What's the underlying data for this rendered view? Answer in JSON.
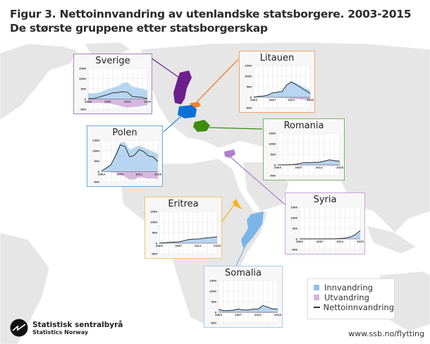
{
  "header": {
    "title_line1": "Figur 3. Nettoinnvandring av utenlandske statsborgere. 2003-2015",
    "title_line2": "De største gruppene etter statsborgerskap"
  },
  "legend": {
    "items": [
      {
        "label": "Innvandring",
        "color": "#8fc1ea",
        "type": "square"
      },
      {
        "label": "Utvandring",
        "color": "#d3b3dd",
        "type": "square"
      },
      {
        "label": "Nettoinnvandring",
        "color": "#333333",
        "type": "line"
      }
    ]
  },
  "footer": {
    "source": "www.ssb.no/flytting",
    "logo_name": "Statistisk sentralbyrå",
    "logo_sub": "Statistics Norway"
  },
  "colors": {
    "innvandring": "#b7d5f0",
    "utvandring": "#d6b8df",
    "netto": "#333333",
    "map_land": "#e4e4e4"
  },
  "chart_data": [
    {
      "type": "area",
      "title": "Sverige",
      "border_color": "#a77fc0",
      "country_color": "#6d1f8c",
      "x": [
        2003,
        2004,
        2005,
        2006,
        2007,
        2008,
        2009,
        2010,
        2011,
        2012,
        2013,
        2014,
        2015
      ],
      "xticks": [
        "2003",
        "2007",
        "2011",
        "2015"
      ],
      "yticks": [
        "1500",
        "1000",
        "500",
        "0",
        "-500"
      ],
      "ylim": [
        -500,
        1500
      ],
      "series": [
        {
          "name": "Innvandring",
          "values": [
            300,
            270,
            300,
            380,
            480,
            560,
            620,
            780,
            820,
            600,
            560,
            500,
            420
          ]
        },
        {
          "name": "Utvandring",
          "values": [
            -200,
            -200,
            -190,
            -200,
            -210,
            -250,
            -300,
            -380,
            -420,
            -400,
            -380,
            -330,
            -310
          ]
        },
        {
          "name": "Nettoinnvandring",
          "values": [
            20,
            20,
            80,
            150,
            220,
            300,
            320,
            360,
            330,
            120,
            100,
            80,
            10
          ]
        }
      ]
    },
    {
      "type": "area",
      "title": "Litauen",
      "border_color": "#f1a46a",
      "country_color": "#f07e2b",
      "x": [
        2003,
        2004,
        2005,
        2006,
        2007,
        2008,
        2009,
        2010,
        2011,
        2012,
        2013,
        2014,
        2015
      ],
      "xticks": [
        "2003",
        "2007",
        "2011",
        "2015"
      ],
      "yticks": [
        "1500",
        "1000",
        "500",
        "0",
        "-500"
      ],
      "ylim": [
        -500,
        1500
      ],
      "series": [
        {
          "name": "Innvandring",
          "values": [
            10,
            40,
            60,
            110,
            220,
            260,
            300,
            620,
            780,
            680,
            560,
            440,
            340
          ]
        },
        {
          "name": "Utvandring",
          "values": [
            0,
            0,
            0,
            0,
            -10,
            -20,
            -30,
            -40,
            -60,
            -80,
            -100,
            -120,
            -140
          ]
        },
        {
          "name": "Nettoinnvandring",
          "values": [
            10,
            40,
            60,
            100,
            210,
            240,
            270,
            580,
            720,
            600,
            460,
            320,
            180
          ]
        }
      ]
    },
    {
      "type": "area",
      "title": "Polen",
      "border_color": "#6aa8e0",
      "country_color": "#0a6fd6",
      "x": [
        2003,
        2004,
        2005,
        2006,
        2007,
        2008,
        2009,
        2010,
        2011,
        2012,
        2013,
        2014,
        2015
      ],
      "xticks": [
        "2003",
        "2007",
        "2011",
        "2015"
      ],
      "yticks": [
        "1500",
        "1000",
        "500",
        "0",
        "-500"
      ],
      "ylim": [
        -500,
        1500
      ],
      "series": [
        {
          "name": "Innvandring",
          "values": [
            40,
            200,
            350,
            850,
            1400,
            1400,
            1050,
            1150,
            1250,
            1150,
            1050,
            950,
            850
          ]
        },
        {
          "name": "Utvandring",
          "values": [
            -10,
            -20,
            -30,
            -60,
            -150,
            -250,
            -400,
            -380,
            -280,
            -300,
            -350,
            -330,
            -380
          ]
        },
        {
          "name": "Nettoinnvandring",
          "values": [
            30,
            160,
            320,
            750,
            1280,
            1200,
            700,
            780,
            1050,
            950,
            750,
            700,
            480
          ]
        }
      ]
    },
    {
      "type": "area",
      "title": "Romania",
      "border_color": "#7fb36a",
      "country_color": "#3f8c10",
      "x": [
        2003,
        2004,
        2005,
        2006,
        2007,
        2008,
        2009,
        2010,
        2011,
        2012,
        2013,
        2014,
        2015
      ],
      "xticks": [
        "2003",
        "2007",
        "2011",
        "2015"
      ],
      "yticks": [
        "1500",
        "1000",
        "500",
        "0",
        "-500"
      ],
      "ylim": [
        -500,
        1500
      ],
      "series": [
        {
          "name": "Innvandring",
          "values": [
            5,
            5,
            10,
            15,
            60,
            120,
            120,
            130,
            150,
            200,
            260,
            230,
            200
          ]
        },
        {
          "name": "Utvandring",
          "values": [
            0,
            0,
            0,
            0,
            -5,
            -10,
            -15,
            -15,
            -20,
            -25,
            -30,
            -35,
            -40
          ]
        },
        {
          "name": "Nettoinnvandring",
          "values": [
            5,
            5,
            10,
            15,
            50,
            110,
            110,
            120,
            130,
            180,
            240,
            200,
            170
          ]
        }
      ]
    },
    {
      "type": "area",
      "title": "Eritrea",
      "border_color": "#f0c86a",
      "country_color": "#f3b21e",
      "x": [
        2003,
        2004,
        2005,
        2006,
        2007,
        2008,
        2009,
        2010,
        2011,
        2012,
        2013,
        2014,
        2015
      ],
      "xticks": [
        "2003",
        "2007",
        "2011",
        "2015"
      ],
      "yticks": [
        "1500",
        "1000",
        "500",
        "0",
        "-500"
      ],
      "ylim": [
        -500,
        1500
      ],
      "series": [
        {
          "name": "Innvandring",
          "values": [
            10,
            20,
            40,
            50,
            60,
            110,
            170,
            190,
            200,
            230,
            260,
            280,
            310
          ]
        },
        {
          "name": "Utvandring",
          "values": [
            0,
            0,
            0,
            0,
            0,
            0,
            0,
            0,
            0,
            -5,
            -5,
            -5,
            -5
          ]
        },
        {
          "name": "Nettoinnvandring",
          "values": [
            10,
            20,
            40,
            50,
            60,
            110,
            170,
            190,
            200,
            225,
            255,
            275,
            305
          ]
        }
      ]
    },
    {
      "type": "area",
      "title": "Syria",
      "border_color": "#c9a6d8",
      "country_color": "#b37fcc",
      "x": [
        2003,
        2004,
        2005,
        2006,
        2007,
        2008,
        2009,
        2010,
        2011,
        2012,
        2013,
        2014,
        2015
      ],
      "xticks": [
        "2003",
        "2007",
        "2011",
        "2015"
      ],
      "yticks": [
        "1500",
        "1000",
        "500",
        "0",
        "-500"
      ],
      "ylim": [
        -500,
        1500
      ],
      "series": [
        {
          "name": "Innvandring",
          "values": [
            5,
            5,
            5,
            5,
            5,
            5,
            5,
            10,
            20,
            40,
            100,
            220,
            420
          ]
        },
        {
          "name": "Utvandring",
          "values": [
            0,
            0,
            0,
            0,
            0,
            0,
            0,
            0,
            0,
            0,
            0,
            0,
            0
          ]
        },
        {
          "name": "Nettoinnvandring",
          "values": [
            5,
            5,
            5,
            5,
            5,
            5,
            5,
            10,
            20,
            40,
            90,
            200,
            400
          ]
        }
      ]
    },
    {
      "type": "area",
      "title": "Somalia",
      "border_color": "#a8cdea",
      "country_color": "#7ab5e8",
      "x": [
        2003,
        2004,
        2005,
        2006,
        2007,
        2008,
        2009,
        2010,
        2011,
        2012,
        2013,
        2014,
        2015
      ],
      "xticks": [
        "2003",
        "2007",
        "2011",
        "2015"
      ],
      "yticks": [
        "1500",
        "1000",
        "500",
        "0",
        "-500"
      ],
      "ylim": [
        -500,
        1500
      ],
      "series": [
        {
          "name": "Innvandring",
          "values": [
            160,
            100,
            100,
            120,
            170,
            130,
            130,
            170,
            170,
            340,
            260,
            180,
            180
          ]
        },
        {
          "name": "Utvandring",
          "values": [
            -20,
            -20,
            -20,
            -20,
            -20,
            -20,
            -20,
            -20,
            -30,
            -30,
            -30,
            -30,
            -30
          ]
        },
        {
          "name": "Nettoinnvandring",
          "values": [
            140,
            80,
            80,
            100,
            150,
            110,
            110,
            150,
            150,
            320,
            240,
            160,
            160
          ]
        }
      ]
    }
  ]
}
